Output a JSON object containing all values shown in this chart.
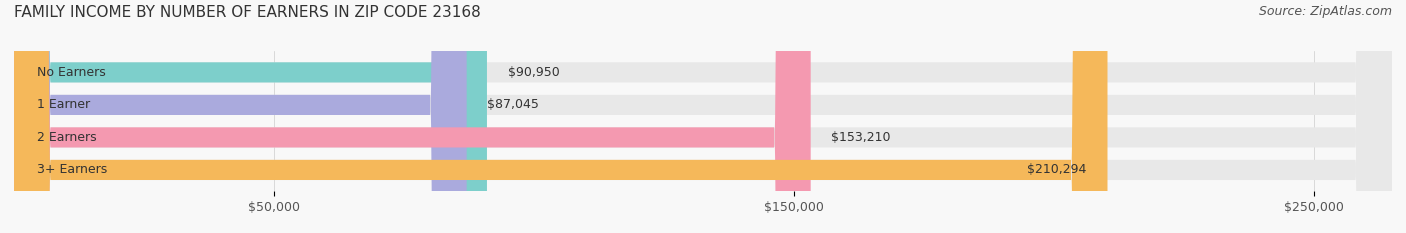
{
  "title": "FAMILY INCOME BY NUMBER OF EARNERS IN ZIP CODE 23168",
  "source": "Source: ZipAtlas.com",
  "categories": [
    "No Earners",
    "1 Earner",
    "2 Earners",
    "3+ Earners"
  ],
  "values": [
    90950,
    87045,
    153210,
    210294
  ],
  "labels": [
    "$90,950",
    "$87,045",
    "$153,210",
    "$210,294"
  ],
  "bar_colors": [
    "#7DCFCB",
    "#AAAADD",
    "#F499B0",
    "#F5B85A"
  ],
  "bar_bg_color": "#E8E8E8",
  "xlim": [
    0,
    265000
  ],
  "xticks": [
    50000,
    150000,
    250000
  ],
  "xtick_labels": [
    "$50,000",
    "$150,000",
    "$250,000"
  ],
  "background_color": "#F8F8F8",
  "title_fontsize": 11,
  "source_fontsize": 9,
  "label_fontsize": 9,
  "category_fontsize": 9,
  "bar_height": 0.62,
  "bar_label_inside_threshold": 180000
}
